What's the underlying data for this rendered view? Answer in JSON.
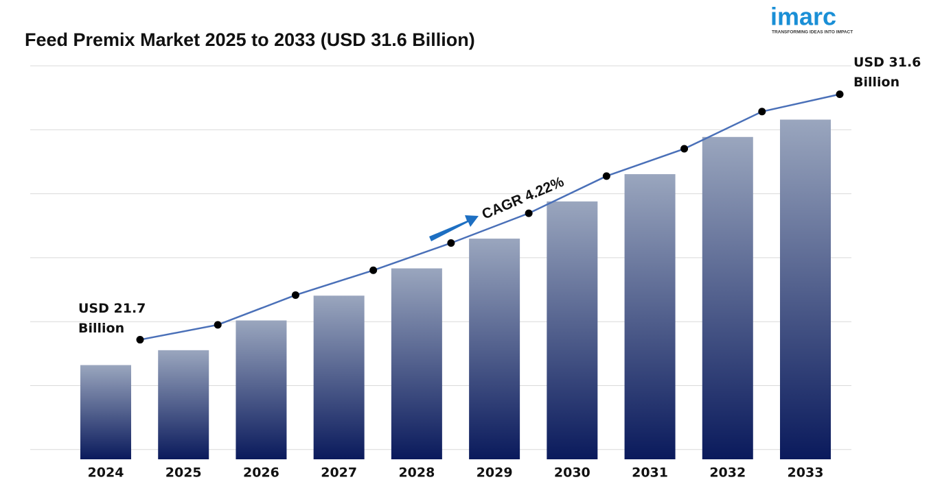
{
  "brand": {
    "name": "imarc",
    "tagline": "TRANSFORMING IDEAS INTO IMPACT"
  },
  "chart_data": {
    "type": "bar",
    "title": "Feed Premix Market 2025 to 2033 (USD 31.6 Billion)",
    "categories": [
      "2024",
      "2025",
      "2026",
      "2027",
      "2028",
      "2029",
      "2030",
      "2031",
      "2032",
      "2033"
    ],
    "values": [
      21.7,
      22.3,
      23.5,
      24.5,
      25.6,
      26.8,
      28.3,
      29.4,
      30.9,
      31.6
    ],
    "value_labels": [
      "USD 21.7 Billion",
      null,
      null,
      null,
      null,
      null,
      null,
      null,
      null,
      "USD 31.6 Billion"
    ],
    "bar_colors": [
      "#9aa6be",
      "#0a1a5c"
    ],
    "line_color": "#4a70b8",
    "annotation": "CAGR 4.22%",
    "ylim": [
      17.9,
      32
    ],
    "grid": true
  }
}
